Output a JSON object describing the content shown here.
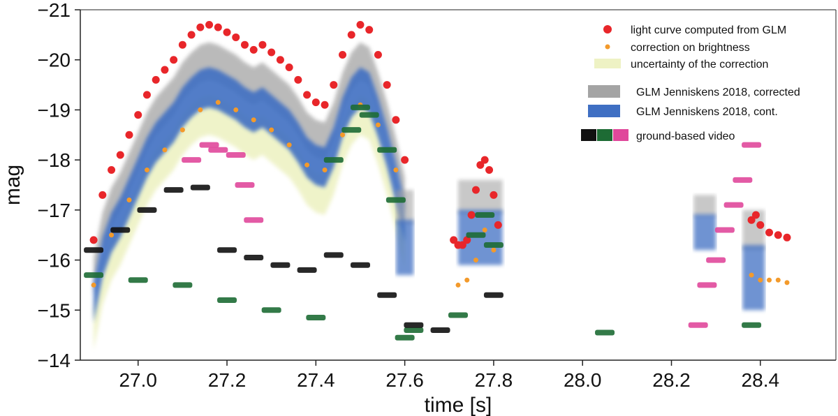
{
  "chart_data": {
    "type": "scatter",
    "xlabel": "time [s]",
    "ylabel": "mag",
    "xlim": [
      26.87,
      28.57
    ],
    "ylim": [
      -14,
      -21
    ],
    "y_inverted": true,
    "xticks": [
      "27.0",
      "27.2",
      "27.4",
      "27.6",
      "27.8",
      "28.0",
      "28.2",
      "28.4"
    ],
    "yticks": [
      "−21",
      "−20",
      "−19",
      "−18",
      "−17",
      "−16",
      "−15",
      "−14"
    ],
    "grid": false,
    "legend_position": "top-right",
    "legend": [
      {
        "label": "light curve computed from GLM",
        "marker": "circle",
        "color": "#e8262a"
      },
      {
        "label": "correction on brightness",
        "marker": "small-circle",
        "color": "#f39a2b"
      },
      {
        "label": "uncertainty of the correction",
        "marker": "band",
        "color": "#eef2c4"
      },
      {
        "label": "GLM Jenniskens 2018, corrected",
        "marker": "band",
        "color": "#a4a4a4"
      },
      {
        "label": "GLM Jenniskens 2018, cont.",
        "marker": "band",
        "color": "#3f6fc3"
      },
      {
        "label": "ground-based video",
        "marker": "swatches",
        "colors": [
          "#111111",
          "#1d6b34",
          "#e0489b"
        ]
      }
    ],
    "series": [
      {
        "name": "light curve computed from GLM",
        "color": "#e8262a",
        "x": [
          26.9,
          26.92,
          26.94,
          26.96,
          26.98,
          27.0,
          27.02,
          27.04,
          27.06,
          27.08,
          27.1,
          27.12,
          27.14,
          27.16,
          27.18,
          27.2,
          27.22,
          27.24,
          27.26,
          27.28,
          27.3,
          27.32,
          27.34,
          27.36,
          27.38,
          27.4,
          27.42,
          27.44,
          27.46,
          27.48,
          27.5,
          27.52,
          27.54,
          27.56,
          27.58,
          27.6,
          27.71,
          27.72,
          27.73,
          27.74,
          27.75,
          27.76,
          27.77,
          27.78,
          27.79,
          27.8,
          27.81,
          28.38,
          28.39,
          28.4,
          28.42,
          28.44,
          28.46
        ],
        "y": [
          -16.4,
          -17.3,
          -17.8,
          -18.1,
          -18.5,
          -18.9,
          -19.3,
          -19.6,
          -19.8,
          -20.0,
          -20.3,
          -20.5,
          -20.65,
          -20.7,
          -20.65,
          -20.55,
          -20.45,
          -20.3,
          -20.2,
          -20.3,
          -20.15,
          -20.0,
          -19.85,
          -19.6,
          -19.3,
          -19.15,
          -19.1,
          -19.5,
          -20.1,
          -20.5,
          -20.7,
          -20.6,
          -20.1,
          -19.5,
          -18.8,
          -18.0,
          -16.4,
          -16.3,
          -16.3,
          -16.4,
          -16.9,
          -17.4,
          -17.9,
          -18.0,
          -17.8,
          -17.3,
          -16.7,
          -16.8,
          -16.9,
          -16.7,
          -16.55,
          -16.5,
          -16.45
        ]
      },
      {
        "name": "correction on brightness",
        "color": "#f39a2b",
        "x": [
          26.9,
          26.94,
          26.98,
          27.02,
          27.06,
          27.1,
          27.14,
          27.18,
          27.22,
          27.26,
          27.3,
          27.34,
          27.38,
          27.42,
          27.46,
          27.5,
          27.54,
          27.58,
          27.72,
          27.74,
          27.76,
          27.78,
          27.8,
          28.38,
          28.4,
          28.42,
          28.44,
          28.46
        ],
        "y": [
          -15.5,
          -16.5,
          -17.2,
          -17.8,
          -18.2,
          -18.6,
          -19.0,
          -19.15,
          -19.0,
          -18.8,
          -18.6,
          -18.3,
          -17.9,
          -17.8,
          -18.5,
          -19.1,
          -18.7,
          -17.8,
          -15.5,
          -15.6,
          -16.0,
          -16.6,
          -16.2,
          -15.7,
          -15.6,
          -15.6,
          -15.6,
          -15.55
        ]
      },
      {
        "name": "ground-based video (green)",
        "color": "#1d6b34",
        "x": [
          26.9,
          27.0,
          27.1,
          27.2,
          27.3,
          27.4,
          27.44,
          27.48,
          27.5,
          27.52,
          27.56,
          27.58,
          27.6,
          27.62,
          27.72,
          27.76,
          27.78,
          27.8,
          28.05,
          28.38
        ],
        "y": [
          -15.7,
          -15.6,
          -15.5,
          -15.2,
          -15.0,
          -14.85,
          -18.0,
          -18.6,
          -19.05,
          -18.9,
          -18.2,
          -17.2,
          -14.45,
          -14.6,
          -14.9,
          -16.5,
          -16.9,
          -16.3,
          -14.55,
          -14.7
        ]
      },
      {
        "name": "ground-based video (black)",
        "color": "#111111",
        "x": [
          26.9,
          26.96,
          27.02,
          27.08,
          27.14,
          27.2,
          27.26,
          27.32,
          27.38,
          27.44,
          27.5,
          27.56,
          27.62,
          27.68,
          27.8
        ],
        "y": [
          -16.2,
          -16.6,
          -17.0,
          -17.4,
          -17.45,
          -16.2,
          -16.05,
          -15.9,
          -15.8,
          -16.1,
          -15.9,
          -15.3,
          -14.7,
          -14.6,
          -15.3
        ]
      },
      {
        "name": "ground-based video (pink)",
        "color": "#e0489b",
        "x": [
          27.12,
          27.16,
          27.18,
          27.22,
          27.24,
          27.26,
          28.26,
          28.28,
          28.3,
          28.32,
          28.34,
          28.36,
          28.38
        ],
        "y": [
          -18.0,
          -18.3,
          -18.2,
          -18.1,
          -17.5,
          -16.8,
          -14.7,
          -15.5,
          -16.0,
          -16.6,
          -17.1,
          -17.6,
          -18.3
        ]
      }
    ]
  }
}
